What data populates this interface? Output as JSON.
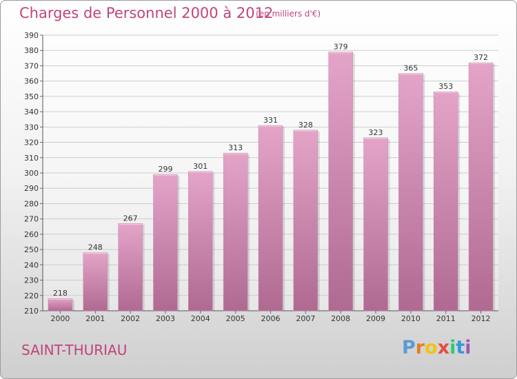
{
  "header": {
    "title": "Charges de Personnel 2000 à 2012",
    "subtitle": "(en milliers d'€)"
  },
  "footer": {
    "commune": "SAINT-THURIAU",
    "logo_letters": [
      "P",
      "r",
      "o",
      "x",
      "i",
      "t",
      "i"
    ]
  },
  "colors": {
    "title": "#c0447c",
    "bar_top": "#e4a4c8",
    "bar_bottom": "#b06a92",
    "logo": [
      "#5b9bd5",
      "#e67e22",
      "#f1c40f",
      "#e74c3c",
      "#2ecc71",
      "#3498db",
      "#9b59b6"
    ]
  },
  "chart_data": {
    "type": "bar",
    "categories": [
      "2000",
      "2001",
      "2002",
      "2003",
      "2004",
      "2005",
      "2006",
      "2007",
      "2008",
      "2009",
      "2010",
      "2011",
      "2012"
    ],
    "values": [
      218,
      248,
      267,
      299,
      301,
      313,
      331,
      328,
      379,
      323,
      365,
      353,
      372
    ],
    "ylim": [
      210,
      390
    ],
    "yticks": [
      210,
      220,
      230,
      240,
      250,
      260,
      270,
      280,
      290,
      300,
      310,
      320,
      330,
      340,
      350,
      360,
      370,
      380,
      390
    ],
    "grid": true,
    "data_labels": true
  }
}
